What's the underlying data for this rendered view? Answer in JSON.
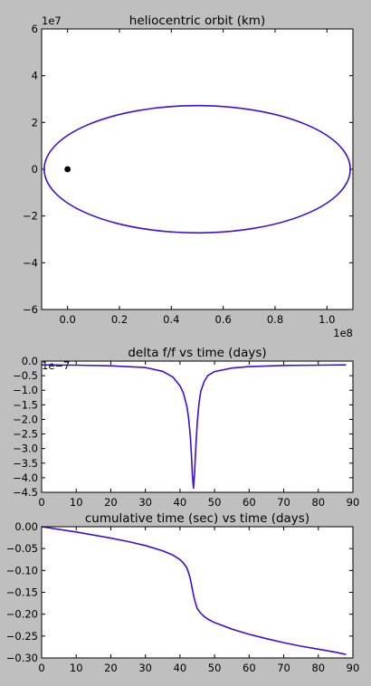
{
  "figure": {
    "background": "#bfbfbf",
    "line_color": "#3a10d8",
    "marker_color": "#000000"
  },
  "chart_data": [
    {
      "type": "line",
      "title": "heliocentric orbit (km)",
      "xlabel": "",
      "ylabel": "",
      "xlim": [
        -0.1,
        1.1
      ],
      "ylim": [
        -6,
        6
      ],
      "x_multiplier_label": "1e8",
      "y_multiplier_label": "1e7",
      "xticks": [
        0,
        0.2,
        0.4,
        0.6,
        0.8,
        1.0
      ],
      "xtick_labels": [
        "0.0",
        "0.2",
        "0.4",
        "0.6",
        "0.8",
        "1.0"
      ],
      "yticks": [
        -6,
        -4,
        -2,
        0,
        2,
        4,
        6
      ],
      "ytick_labels": [
        "−6",
        "−4",
        "−2",
        "0",
        "2",
        "4",
        "6"
      ],
      "series": [
        {
          "orbit": {
            "center_x": 0.5,
            "center_y": 0,
            "semi_major_x": 0.59,
            "semi_minor_y": 2.72
          }
        }
      ],
      "points": [
        {
          "x": 0.0,
          "y": 0.0
        }
      ],
      "grid": false
    },
    {
      "type": "line",
      "title": "delta f/f vs time (days)",
      "xlabel": "",
      "ylabel": "",
      "xlim": [
        0,
        90
      ],
      "ylim": [
        -4.5,
        0.0
      ],
      "y_multiplier_label": "1e−7",
      "xticks": [
        0,
        10,
        20,
        30,
        40,
        50,
        60,
        70,
        80,
        90
      ],
      "xtick_labels": [
        "0",
        "10",
        "20",
        "30",
        "40",
        "50",
        "60",
        "70",
        "80",
        "90"
      ],
      "yticks": [
        0.0,
        -0.5,
        -1.0,
        -1.5,
        -2.0,
        -2.5,
        -3.0,
        -3.5,
        -4.0,
        -4.5
      ],
      "ytick_labels": [
        "0.0",
        "−0.5",
        "−1.0",
        "−1.5",
        "−2.0",
        "−2.5",
        "−3.0",
        "−3.5",
        "−4.0",
        "−4.5"
      ],
      "series": [
        {
          "x": [
            0,
            10,
            20,
            30,
            35,
            38,
            40,
            41,
            42,
            42.5,
            43,
            43.3,
            43.6,
            43.9,
            44.2,
            44.6,
            45,
            45.5,
            46,
            47,
            48,
            50,
            55,
            60,
            70,
            80,
            88
          ],
          "y": [
            -0.13,
            -0.14,
            -0.16,
            -0.22,
            -0.35,
            -0.55,
            -0.85,
            -1.1,
            -1.55,
            -1.95,
            -2.6,
            -3.2,
            -3.9,
            -4.36,
            -3.9,
            -2.9,
            -2.1,
            -1.45,
            -1.05,
            -0.7,
            -0.5,
            -0.36,
            -0.24,
            -0.19,
            -0.15,
            -0.14,
            -0.13
          ]
        }
      ],
      "grid": false
    },
    {
      "type": "line",
      "title": "cumulative time (sec) vs time (days)",
      "xlabel": "",
      "ylabel": "",
      "xlim": [
        0,
        90
      ],
      "ylim": [
        -0.3,
        0.0
      ],
      "xticks": [
        0,
        10,
        20,
        30,
        40,
        50,
        60,
        70,
        80,
        90
      ],
      "xtick_labels": [
        "0",
        "10",
        "20",
        "30",
        "40",
        "50",
        "60",
        "70",
        "80",
        "90"
      ],
      "yticks": [
        0.0,
        -0.05,
        -0.1,
        -0.15,
        -0.2,
        -0.25,
        -0.3
      ],
      "ytick_labels": [
        "0.00",
        "−0.05",
        "−0.10",
        "−0.15",
        "−0.20",
        "−0.25",
        "−0.30"
      ],
      "series": [
        {
          "x": [
            0,
            5,
            10,
            15,
            20,
            25,
            30,
            35,
            38,
            40,
            41,
            42,
            42.5,
            43,
            43.5,
            44,
            44.5,
            45,
            46,
            47,
            48,
            50,
            55,
            60,
            65,
            70,
            75,
            80,
            85,
            88
          ],
          "y": [
            0.0,
            -0.006,
            -0.012,
            -0.019,
            -0.026,
            -0.034,
            -0.043,
            -0.055,
            -0.065,
            -0.075,
            -0.083,
            -0.094,
            -0.105,
            -0.12,
            -0.14,
            -0.16,
            -0.175,
            -0.187,
            -0.198,
            -0.205,
            -0.211,
            -0.219,
            -0.234,
            -0.246,
            -0.256,
            -0.265,
            -0.273,
            -0.28,
            -0.287,
            -0.292
          ]
        }
      ],
      "grid": false
    }
  ]
}
